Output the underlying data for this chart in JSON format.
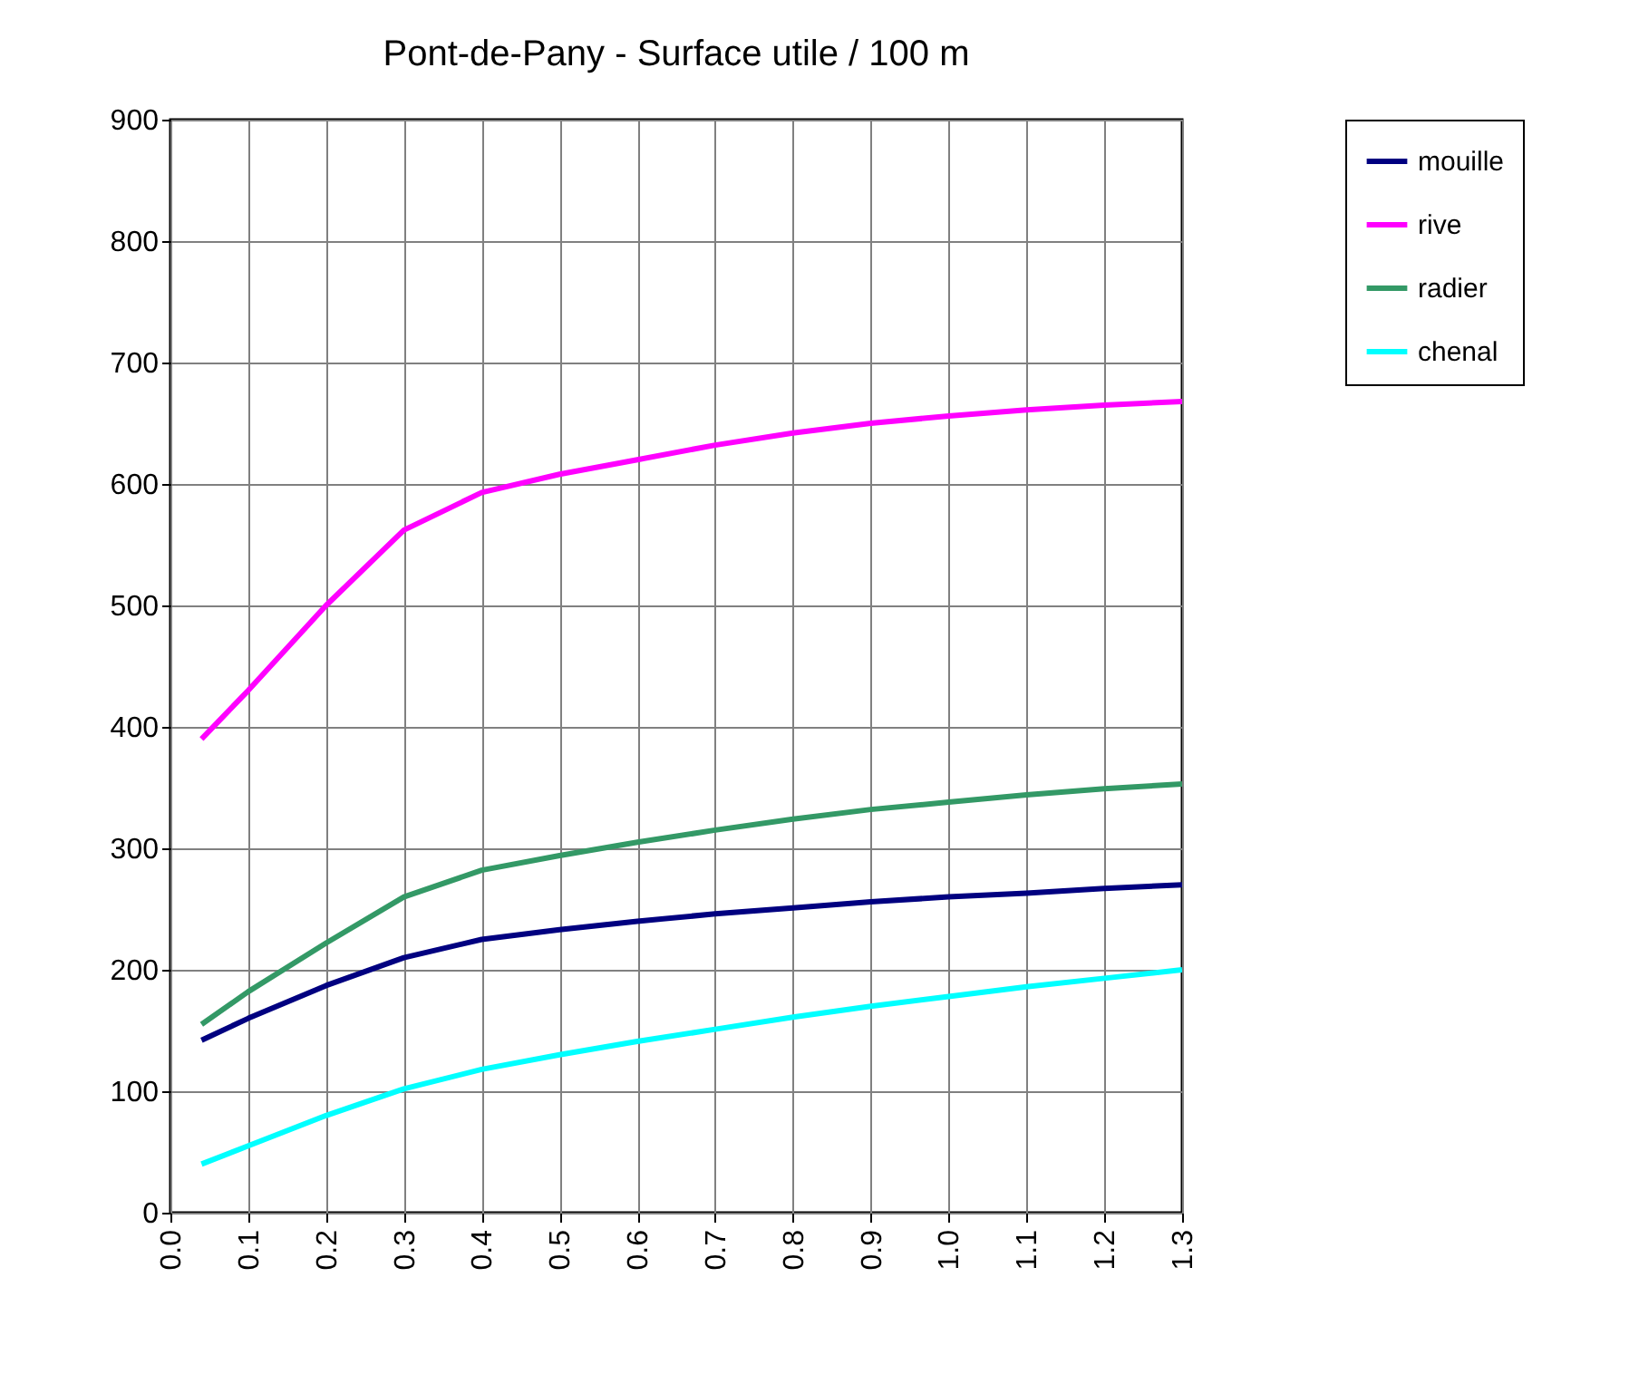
{
  "chart_data": {
    "type": "line",
    "title": "Pont-de-Pany - Surface utile / 100 m",
    "x": [
      0.04,
      0.1,
      0.2,
      0.3,
      0.4,
      0.5,
      0.6,
      0.7,
      0.8,
      0.9,
      1.0,
      1.1,
      1.2,
      1.3
    ],
    "series": [
      {
        "name": "mouille",
        "color": "#000080",
        "values": [
          142,
          160,
          187,
          210,
          225,
          233,
          240,
          246,
          251,
          256,
          260,
          263,
          267,
          270
        ]
      },
      {
        "name": "rive",
        "color": "#ff00ff",
        "values": [
          390,
          430,
          500,
          562,
          593,
          608,
          620,
          632,
          642,
          650,
          656,
          661,
          665,
          668
        ]
      },
      {
        "name": "radier",
        "color": "#339966",
        "values": [
          155,
          182,
          222,
          260,
          282,
          294,
          305,
          315,
          324,
          332,
          338,
          344,
          349,
          353
        ]
      },
      {
        "name": "chenal",
        "color": "#00ffff",
        "values": [
          40,
          55,
          80,
          102,
          118,
          130,
          141,
          151,
          161,
          170,
          178,
          186,
          193,
          200
        ]
      }
    ],
    "xlim": [
      0,
      1.3
    ],
    "xticks": [
      {
        "value": 0,
        "label": "0.0"
      },
      0.1,
      0.2,
      0.3,
      0.4,
      0.5,
      0.6,
      0.7,
      0.8,
      0.9,
      {
        "value": 1.0,
        "label": "1.0"
      },
      1.1,
      1.2,
      1.3
    ],
    "ylim": [
      0,
      900
    ],
    "yticks": [
      0,
      100,
      200,
      300,
      400,
      500,
      600,
      700,
      800,
      900
    ],
    "grid": true,
    "legend": "right",
    "marker": "none",
    "line_style": "solid"
  }
}
